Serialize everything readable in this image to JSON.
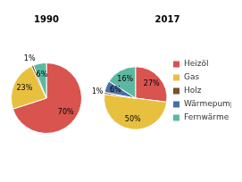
{
  "chart_data": [
    {
      "type": "pie",
      "title": "1990",
      "categories": [
        "Heizöl",
        "Gas",
        "Holz",
        "Wärmepumpe",
        "Fernwärme"
      ],
      "values": [
        70,
        23,
        1,
        0,
        6
      ],
      "value_labels": [
        "70%",
        "23%",
        "1%",
        null,
        "6%"
      ],
      "colors": [
        "#d9534f",
        "#e8c040",
        "#7a4f2e",
        "#4a6fa5",
        "#5cb8a0"
      ],
      "data_labels": true
    },
    {
      "type": "pie",
      "title": "2017",
      "categories": [
        "Heizöl",
        "Gas",
        "Holz",
        "Wärmepumpe",
        "Fernwärme"
      ],
      "values": [
        27,
        50,
        1,
        6,
        16
      ],
      "value_labels": [
        "27%",
        "50%",
        "1%",
        "6%",
        "16%"
      ],
      "colors": [
        "#d9534f",
        "#e8c040",
        "#7a4f2e",
        "#4a6fa5",
        "#5cb8a0"
      ],
      "data_labels": true,
      "legend": "right"
    }
  ]
}
